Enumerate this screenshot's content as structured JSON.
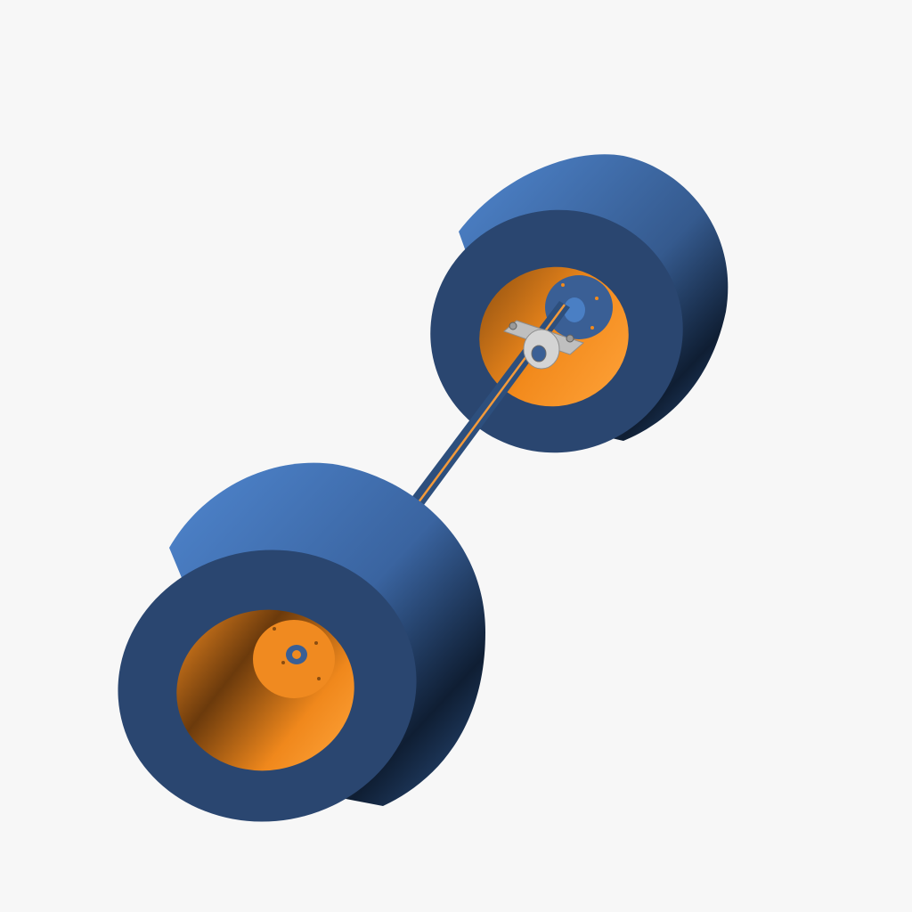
{
  "scene": {
    "background": "#f7f7f7",
    "tire_color": "#3f6aa6",
    "tire_face_color": "#2a4670",
    "rim_color": "#f28a1c",
    "axle_color": "#2d4f7d",
    "axle_stripe_color": "#f39a3a",
    "bearing_color": "#c8c8c8"
  }
}
